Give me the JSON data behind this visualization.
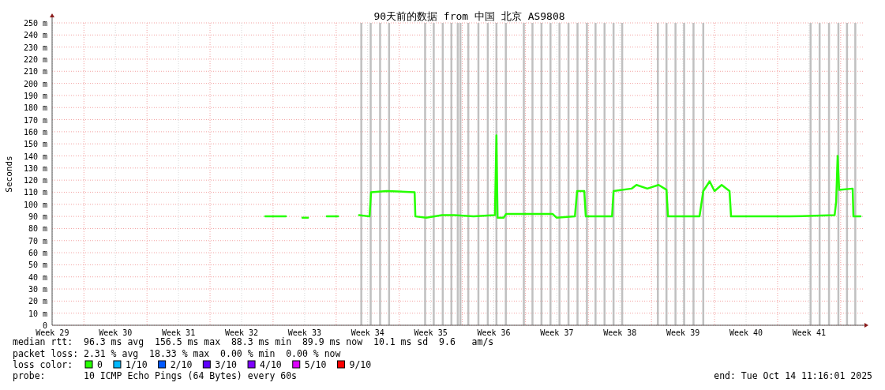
{
  "chart_data": {
    "type": "line",
    "title": "90天前的数据 from 中国 北京 AS9808",
    "ylabel": "Seconds",
    "xlim": [
      "2025-07-16T11:16",
      "2025-10-14T11:16"
    ],
    "ylim": [
      0,
      250
    ],
    "xticks": [
      {
        "value": "2025-07-16T12:00",
        "label": "Week 29"
      },
      {
        "value": "2025-07-23T12:00",
        "label": "Week 30"
      },
      {
        "value": "2025-07-30T12:00",
        "label": "Week 31"
      },
      {
        "value": "2025-08-06T12:00",
        "label": "Week 32"
      },
      {
        "value": "2025-08-13T12:00",
        "label": "Week 33"
      },
      {
        "value": "2025-08-20T12:00",
        "label": "Week 34"
      },
      {
        "value": "2025-08-27T12:00",
        "label": "Week 35"
      },
      {
        "value": "2025-09-03T12:00",
        "label": "Week 36"
      },
      {
        "value": "2025-09-10T12:00",
        "label": "Week 37"
      },
      {
        "value": "2025-09-17T12:00",
        "label": "Week 38"
      },
      {
        "value": "2025-09-24T12:00",
        "label": "Week 39"
      },
      {
        "value": "2025-10-01T12:00",
        "label": "Week 40"
      },
      {
        "value": "2025-10-08T12:00",
        "label": "Week 41"
      },
      {
        "value": "2025-07-20",
        "label": null
      },
      {
        "value": "2025-07-27",
        "label": null
      },
      {
        "value": "2025-08-03",
        "label": null
      },
      {
        "value": "2025-08-10",
        "label": null
      },
      {
        "value": "2025-08-17",
        "label": null
      },
      {
        "value": "2025-08-24",
        "label": null
      },
      {
        "value": "2025-08-31",
        "label": null
      },
      {
        "value": "2025-09-07",
        "label": null
      },
      {
        "value": "2025-09-14",
        "label": null
      },
      {
        "value": "2025-09-21",
        "label": null
      },
      {
        "value": "2025-09-28",
        "label": null
      },
      {
        "value": "2025-10-05",
        "label": null
      },
      {
        "value": "2025-10-12",
        "label": null
      }
    ],
    "yticks": [
      {
        "value": 0,
        "label": "0"
      },
      {
        "value": 10,
        "label": "10 m"
      },
      {
        "value": 20,
        "label": "20 m"
      },
      {
        "value": 30,
        "label": "30 m"
      },
      {
        "value": 40,
        "label": "40 m"
      },
      {
        "value": 50,
        "label": "50 m"
      },
      {
        "value": 60,
        "label": "60 m"
      },
      {
        "value": 70,
        "label": "70 m"
      },
      {
        "value": 80,
        "label": "80 m"
      },
      {
        "value": 90,
        "label": "90 m"
      },
      {
        "value": 100,
        "label": "100 m"
      },
      {
        "value": 110,
        "label": "110 m"
      },
      {
        "value": 120,
        "label": "120 m"
      },
      {
        "value": 130,
        "label": "130 m"
      },
      {
        "value": 140,
        "label": "140 m"
      },
      {
        "value": 150,
        "label": "150 m"
      },
      {
        "value": 160,
        "label": "160 m"
      },
      {
        "value": 170,
        "label": "170 m"
      },
      {
        "value": 180,
        "label": "180 m"
      },
      {
        "value": 190,
        "label": "190 m"
      },
      {
        "value": 200,
        "label": "200 m"
      },
      {
        "value": 210,
        "label": "210 m"
      },
      {
        "value": 220,
        "label": "220 m"
      },
      {
        "value": 230,
        "label": "230 m"
      },
      {
        "value": 240,
        "label": "240 m"
      },
      {
        "value": 250,
        "label": "250 m"
      }
    ],
    "grid": true,
    "legend": "bottom",
    "legend_title": "loss color:",
    "series": [
      {
        "name": "0",
        "color": "#26ff00",
        "x": [
          "2025-08-09T03:00",
          "2025-08-11T10:00",
          "2025-08-11T12:00",
          "2025-08-13T06:00",
          "2025-08-13T21:00",
          "2025-08-13T23:00",
          "2025-08-15T23:00",
          "2025-08-17T05:00",
          "2025-08-17T07:00",
          "2025-08-19T13:00",
          "2025-08-20T17:00",
          "2025-08-20T21:00",
          "2025-08-22T15:00",
          "2025-08-25T17:00",
          "2025-08-25T19:00",
          "2025-08-27T00:00",
          "2025-08-28T18:00",
          "2025-08-30T02:00",
          "2025-09-01T06:00",
          "2025-09-03T15:00",
          "2025-09-03T19:00",
          "2025-09-03T22:00",
          "2025-09-04T14:00",
          "2025-09-04T21:00",
          "2025-09-06T13:00",
          "2025-09-08T07:00",
          "2025-09-10T01:00",
          "2025-09-10T11:00",
          "2025-09-12T12:00",
          "2025-09-12T18:00",
          "2025-09-13T13:00",
          "2025-09-13T17:00",
          "2025-09-15T07:00",
          "2025-09-16T15:00",
          "2025-09-16T19:00",
          "2025-09-18T19:00",
          "2025-09-19T08:00",
          "2025-09-20T13:00",
          "2025-09-21T19:00",
          "2025-09-22T16:00",
          "2025-09-22T20:00",
          "2025-09-24T22:00",
          "2025-09-26T08:00",
          "2025-09-26T18:00",
          "2025-09-27T11:00",
          "2025-09-28T00:00",
          "2025-09-28T19:00",
          "2025-09-29T16:00",
          "2025-09-29T20:00",
          "2025-10-02T20:00",
          "2025-10-06T08:00",
          "2025-10-11T08:00",
          "2025-10-11T12:00",
          "2025-10-11T16:00",
          "2025-10-11T20:00",
          "2025-10-13T08:00",
          "2025-10-13T10:00",
          "2025-10-14T05:00"
        ],
        "values": [
          90,
          90,
          null,
          89,
          89,
          null,
          90,
          90,
          null,
          91,
          90,
          110,
          111,
          110,
          90,
          89,
          91,
          91,
          90,
          91,
          157,
          89,
          89,
          92,
          92,
          92,
          92,
          89,
          90,
          111,
          111,
          90,
          90,
          90,
          111,
          113,
          116,
          113,
          116,
          112,
          90,
          90,
          90,
          111,
          119,
          111,
          116,
          111,
          90,
          90,
          90,
          91,
          102,
          140,
          112,
          113,
          90,
          90
        ]
      },
      {
        "name": "1/10",
        "color": "#00b8ff"
      },
      {
        "name": "2/10",
        "color": "#0059ff"
      },
      {
        "name": "3/10",
        "color": "#5e00ff"
      },
      {
        "name": "4/10",
        "color": "#7e00ff"
      },
      {
        "name": "5/10",
        "color": "#dd00ff"
      },
      {
        "name": "9/10",
        "color": "#ff0000"
      }
    ],
    "ref_lines": [
      {
        "axis": "x",
        "value": "2025-08-19T19:00",
        "color": "#c0c0c0"
      },
      {
        "axis": "x",
        "value": "2025-08-20T20:00",
        "color": "#c0c0c0"
      },
      {
        "axis": "x",
        "value": "2025-08-21T21:00",
        "color": "#c0c0c0"
      },
      {
        "axis": "x",
        "value": "2025-08-22T21:00",
        "color": "#c0c0c0"
      },
      {
        "axis": "x",
        "value": "2025-08-26T21:00",
        "color": "#c0c0c0"
      },
      {
        "axis": "x",
        "value": "2025-08-27T20:00",
        "color": "#c0c0c0"
      },
      {
        "axis": "x",
        "value": "2025-08-28T20:00",
        "color": "#c0c0c0"
      },
      {
        "axis": "x",
        "value": "2025-08-29T19:00",
        "color": "#c0c0c0"
      },
      {
        "axis": "x",
        "value": "2025-08-30T12:00",
        "color": "#c0c0c0"
      },
      {
        "axis": "x",
        "value": "2025-08-30T19:00",
        "color": "#c0c0c0"
      },
      {
        "axis": "x",
        "value": "2025-08-31T16:00",
        "color": "#c0c0c0"
      },
      {
        "axis": "x",
        "value": "2025-09-01T19:00",
        "color": "#c0c0c0"
      },
      {
        "axis": "x",
        "value": "2025-09-02T20:00",
        "color": "#c0c0c0"
      },
      {
        "axis": "x",
        "value": "2025-09-03T19:00",
        "color": "#c0c0c0"
      },
      {
        "axis": "x",
        "value": "2025-09-04T20:00",
        "color": "#c0c0c0"
      },
      {
        "axis": "x",
        "value": "2025-09-06T20:00",
        "color": "#c0c0c0"
      },
      {
        "axis": "x",
        "value": "2025-09-07T19:00",
        "color": "#c0c0c0"
      },
      {
        "axis": "x",
        "value": "2025-09-08T19:00",
        "color": "#c0c0c0"
      },
      {
        "axis": "x",
        "value": "2025-09-09T19:00",
        "color": "#c0c0c0"
      },
      {
        "axis": "x",
        "value": "2025-09-10T19:00",
        "color": "#c0c0c0"
      },
      {
        "axis": "x",
        "value": "2025-09-11T19:00",
        "color": "#c0c0c0"
      },
      {
        "axis": "x",
        "value": "2025-09-12T19:00",
        "color": "#c0c0c0"
      },
      {
        "axis": "x",
        "value": "2025-09-13T20:00",
        "color": "#c0c0c0"
      },
      {
        "axis": "x",
        "value": "2025-09-14T19:00",
        "color": "#c0c0c0"
      },
      {
        "axis": "x",
        "value": "2025-09-15T19:00",
        "color": "#c0c0c0"
      },
      {
        "axis": "x",
        "value": "2025-09-16T19:00",
        "color": "#c0c0c0"
      },
      {
        "axis": "x",
        "value": "2025-09-17T18:00",
        "color": "#c0c0c0"
      },
      {
        "axis": "x",
        "value": "2025-09-21T17:00",
        "color": "#c0c0c0"
      },
      {
        "axis": "x",
        "value": "2025-09-22T16:00",
        "color": "#c0c0c0"
      },
      {
        "axis": "x",
        "value": "2025-09-23T16:00",
        "color": "#c0c0c0"
      },
      {
        "axis": "x",
        "value": "2025-09-24T15:00",
        "color": "#c0c0c0"
      },
      {
        "axis": "x",
        "value": "2025-09-25T16:00",
        "color": "#c0c0c0"
      },
      {
        "axis": "x",
        "value": "2025-09-26T18:00",
        "color": "#c0c0c0"
      },
      {
        "axis": "x",
        "value": "2025-10-08T16:00",
        "color": "#c0c0c0"
      },
      {
        "axis": "x",
        "value": "2025-10-09T16:00",
        "color": "#c0c0c0"
      },
      {
        "axis": "x",
        "value": "2025-10-10T17:00",
        "color": "#c0c0c0"
      },
      {
        "axis": "x",
        "value": "2025-10-11T18:00",
        "color": "#c0c0c0"
      },
      {
        "axis": "x",
        "value": "2025-10-12T17:00",
        "color": "#c0c0c0"
      },
      {
        "axis": "x",
        "value": "2025-10-13T15:00",
        "color": "#c0c0c0"
      }
    ],
    "annotations": [
      "median rtt:  96.3 ms avg  156.5 ms max  88.3 ms min  89.9 ms now  10.1 ms sd  9.6   am/s",
      "packet loss: 2.31 % avg  18.33 % max  0.00 % min  0.00 % now",
      "probe:       10 ICMP Echo Pings (64 Bytes) every 60s",
      "end: Tue Oct 14 11:16:01 2025"
    ]
  }
}
